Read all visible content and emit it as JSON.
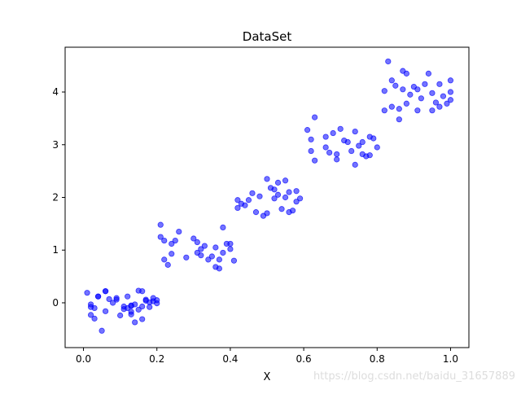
{
  "chart_data": {
    "type": "scatter",
    "title": "DataSet",
    "xlabel": "X",
    "ylabel": "",
    "xlim": [
      -0.05,
      1.05
    ],
    "ylim": [
      -0.85,
      4.85
    ],
    "xticks": [
      "0.0",
      "0.2",
      "0.4",
      "0.6",
      "0.8",
      "1.0"
    ],
    "yticks": [
      "0",
      "1",
      "2",
      "3",
      "4"
    ],
    "grid": false,
    "marker_color": "#0000ff",
    "marker_alpha": 0.55,
    "series": [
      {
        "points": [
          [
            0.01,
            0.19
          ],
          [
            0.02,
            -0.03
          ],
          [
            0.02,
            -0.08
          ],
          [
            0.02,
            -0.23
          ],
          [
            0.03,
            -0.1
          ],
          [
            0.03,
            -0.3
          ],
          [
            0.04,
            0.12
          ],
          [
            0.04,
            0.12
          ],
          [
            0.05,
            -0.53
          ],
          [
            0.06,
            -0.16
          ],
          [
            0.06,
            0.22
          ],
          [
            0.06,
            0.22
          ],
          [
            0.07,
            0.07
          ],
          [
            0.08,
            0.0
          ],
          [
            0.09,
            0.09
          ],
          [
            0.09,
            0.06
          ],
          [
            0.1,
            -0.24
          ],
          [
            0.11,
            -0.12
          ],
          [
            0.11,
            -0.07
          ],
          [
            0.12,
            0.12
          ],
          [
            0.12,
            -0.1
          ],
          [
            0.13,
            -0.05
          ],
          [
            0.13,
            -0.17
          ],
          [
            0.13,
            -0.06
          ],
          [
            0.13,
            -0.22
          ],
          [
            0.14,
            -0.03
          ],
          [
            0.14,
            -0.37
          ],
          [
            0.15,
            0.23
          ],
          [
            0.15,
            -0.13
          ],
          [
            0.16,
            -0.31
          ],
          [
            0.16,
            -0.07
          ],
          [
            0.16,
            0.22
          ],
          [
            0.17,
            0.06
          ],
          [
            0.17,
            0.04
          ],
          [
            0.18,
            -0.08
          ],
          [
            0.18,
            0.01
          ],
          [
            0.19,
            0.03
          ],
          [
            0.19,
            0.09
          ],
          [
            0.2,
            -0.01
          ],
          [
            0.2,
            0.05
          ],
          [
            0.21,
            1.48
          ],
          [
            0.21,
            1.25
          ],
          [
            0.22,
            0.82
          ],
          [
            0.22,
            1.18
          ],
          [
            0.23,
            0.72
          ],
          [
            0.24,
            1.12
          ],
          [
            0.24,
            0.93
          ],
          [
            0.25,
            1.18
          ],
          [
            0.26,
            1.35
          ],
          [
            0.28,
            0.86
          ],
          [
            0.3,
            1.22
          ],
          [
            0.31,
            1.15
          ],
          [
            0.31,
            0.95
          ],
          [
            0.32,
            1.02
          ],
          [
            0.32,
            0.9
          ],
          [
            0.33,
            1.08
          ],
          [
            0.34,
            0.82
          ],
          [
            0.35,
            0.88
          ],
          [
            0.36,
            1.05
          ],
          [
            0.36,
            0.68
          ],
          [
            0.37,
            0.65
          ],
          [
            0.37,
            0.82
          ],
          [
            0.38,
            0.95
          ],
          [
            0.38,
            1.43
          ],
          [
            0.39,
            1.12
          ],
          [
            0.4,
            1.02
          ],
          [
            0.4,
            1.12
          ],
          [
            0.41,
            0.8
          ],
          [
            0.42,
            1.8
          ],
          [
            0.42,
            1.95
          ],
          [
            0.43,
            1.88
          ],
          [
            0.44,
            1.85
          ],
          [
            0.45,
            1.95
          ],
          [
            0.46,
            2.08
          ],
          [
            0.47,
            1.72
          ],
          [
            0.48,
            2.02
          ],
          [
            0.49,
            1.65
          ],
          [
            0.5,
            1.7
          ],
          [
            0.5,
            2.35
          ],
          [
            0.51,
            2.18
          ],
          [
            0.52,
            2.15
          ],
          [
            0.52,
            1.98
          ],
          [
            0.53,
            2.28
          ],
          [
            0.53,
            2.05
          ],
          [
            0.54,
            1.78
          ],
          [
            0.55,
            2.0
          ],
          [
            0.55,
            2.32
          ],
          [
            0.56,
            2.1
          ],
          [
            0.56,
            1.72
          ],
          [
            0.57,
            1.75
          ],
          [
            0.58,
            2.12
          ],
          [
            0.58,
            1.92
          ],
          [
            0.59,
            1.98
          ],
          [
            0.61,
            3.28
          ],
          [
            0.62,
            2.88
          ],
          [
            0.62,
            3.1
          ],
          [
            0.63,
            2.7
          ],
          [
            0.63,
            3.52
          ],
          [
            0.66,
            2.95
          ],
          [
            0.66,
            3.15
          ],
          [
            0.67,
            2.85
          ],
          [
            0.68,
            3.22
          ],
          [
            0.69,
            2.72
          ],
          [
            0.69,
            2.82
          ],
          [
            0.7,
            3.3
          ],
          [
            0.71,
            3.08
          ],
          [
            0.72,
            3.05
          ],
          [
            0.73,
            2.88
          ],
          [
            0.74,
            2.62
          ],
          [
            0.74,
            3.25
          ],
          [
            0.75,
            2.98
          ],
          [
            0.76,
            2.82
          ],
          [
            0.76,
            3.05
          ],
          [
            0.77,
            2.78
          ],
          [
            0.78,
            3.15
          ],
          [
            0.78,
            2.8
          ],
          [
            0.79,
            3.12
          ],
          [
            0.8,
            2.95
          ],
          [
            0.82,
            3.65
          ],
          [
            0.82,
            4.02
          ],
          [
            0.83,
            4.58
          ],
          [
            0.84,
            4.22
          ],
          [
            0.84,
            3.72
          ],
          [
            0.85,
            4.12
          ],
          [
            0.86,
            3.68
          ],
          [
            0.86,
            3.48
          ],
          [
            0.87,
            4.05
          ],
          [
            0.87,
            4.4
          ],
          [
            0.88,
            3.78
          ],
          [
            0.88,
            4.35
          ],
          [
            0.89,
            3.95
          ],
          [
            0.9,
            4.1
          ],
          [
            0.91,
            3.65
          ],
          [
            0.91,
            4.05
          ],
          [
            0.92,
            3.88
          ],
          [
            0.93,
            4.15
          ],
          [
            0.94,
            4.35
          ],
          [
            0.95,
            3.98
          ],
          [
            0.95,
            3.65
          ],
          [
            0.96,
            3.8
          ],
          [
            0.97,
            4.15
          ],
          [
            0.97,
            3.72
          ],
          [
            0.98,
            3.92
          ],
          [
            0.99,
            3.78
          ],
          [
            1.0,
            4.22
          ],
          [
            1.0,
            3.85
          ],
          [
            1.0,
            4.0
          ]
        ]
      }
    ]
  },
  "watermark": "https://blog.csdn.net/baidu_31657889"
}
